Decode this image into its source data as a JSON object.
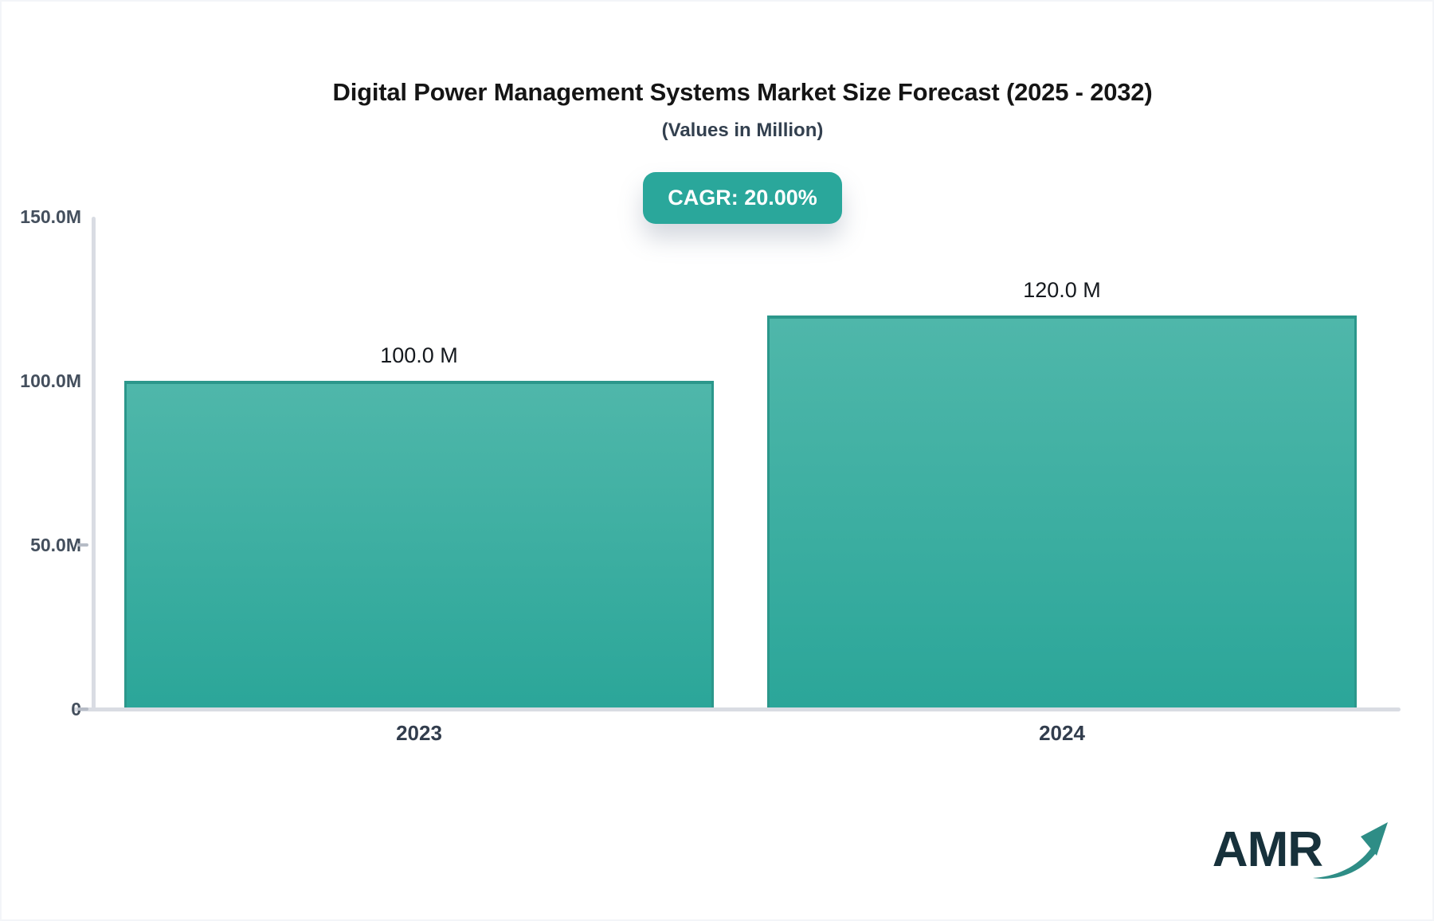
{
  "header": {
    "title": "Digital Power Management Systems Market Size Forecast (2025 - 2032)",
    "subtitle": "(Values in Million)",
    "cagr_badge": "CAGR: 20.00%"
  },
  "chart_data": {
    "type": "bar",
    "title": "Digital Power Management Systems Market Size Forecast (2025 - 2032)",
    "subtitle": "(Values in Million)",
    "categories": [
      "2023",
      "2024"
    ],
    "values": [
      100,
      120
    ],
    "bar_labels": [
      "100.0 M",
      "120.0 M"
    ],
    "cagr_percent": 20.0,
    "xlabel": "",
    "ylabel": "",
    "ylim": [
      0,
      150
    ],
    "ytick_values": [
      150,
      100,
      50,
      0
    ],
    "ytick_labels": [
      "150.0M",
      "100.0M",
      "50.0M",
      "0"
    ],
    "grid": false,
    "legend": false
  },
  "colors": {
    "bar_fill_top": "#4fb7aa",
    "bar_fill_bottom": "#2ba699",
    "bar_border": "#2b978b",
    "badge_bg": "#2aa79b",
    "axis_line": "#d9dce3",
    "title_text": "#151515",
    "tick_text": "#444f5d",
    "logo_text": "#17313b",
    "logo_arrow": "#2e8d86"
  },
  "logo": {
    "text": "AMR",
    "icon": "trending-up-arrow-icon"
  }
}
